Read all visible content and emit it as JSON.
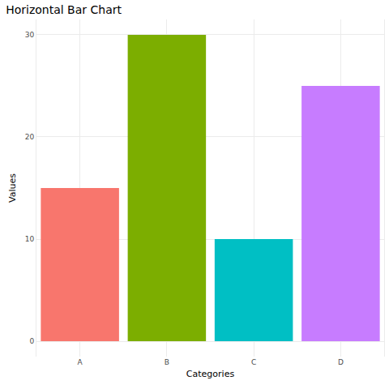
{
  "chart_data": {
    "type": "bar",
    "title": "Horizontal Bar Chart",
    "x_label": "Categories",
    "y_label": "Values",
    "categories": [
      "A",
      "B",
      "C",
      "D"
    ],
    "values": [
      15,
      30,
      10,
      25
    ],
    "colors": [
      "#F8766D",
      "#7CAE00",
      "#00BFC4",
      "#C77CFF"
    ],
    "ylim": [
      -1.5,
      31.5
    ],
    "yticks": [
      0,
      10,
      20,
      30
    ],
    "grid": true
  }
}
